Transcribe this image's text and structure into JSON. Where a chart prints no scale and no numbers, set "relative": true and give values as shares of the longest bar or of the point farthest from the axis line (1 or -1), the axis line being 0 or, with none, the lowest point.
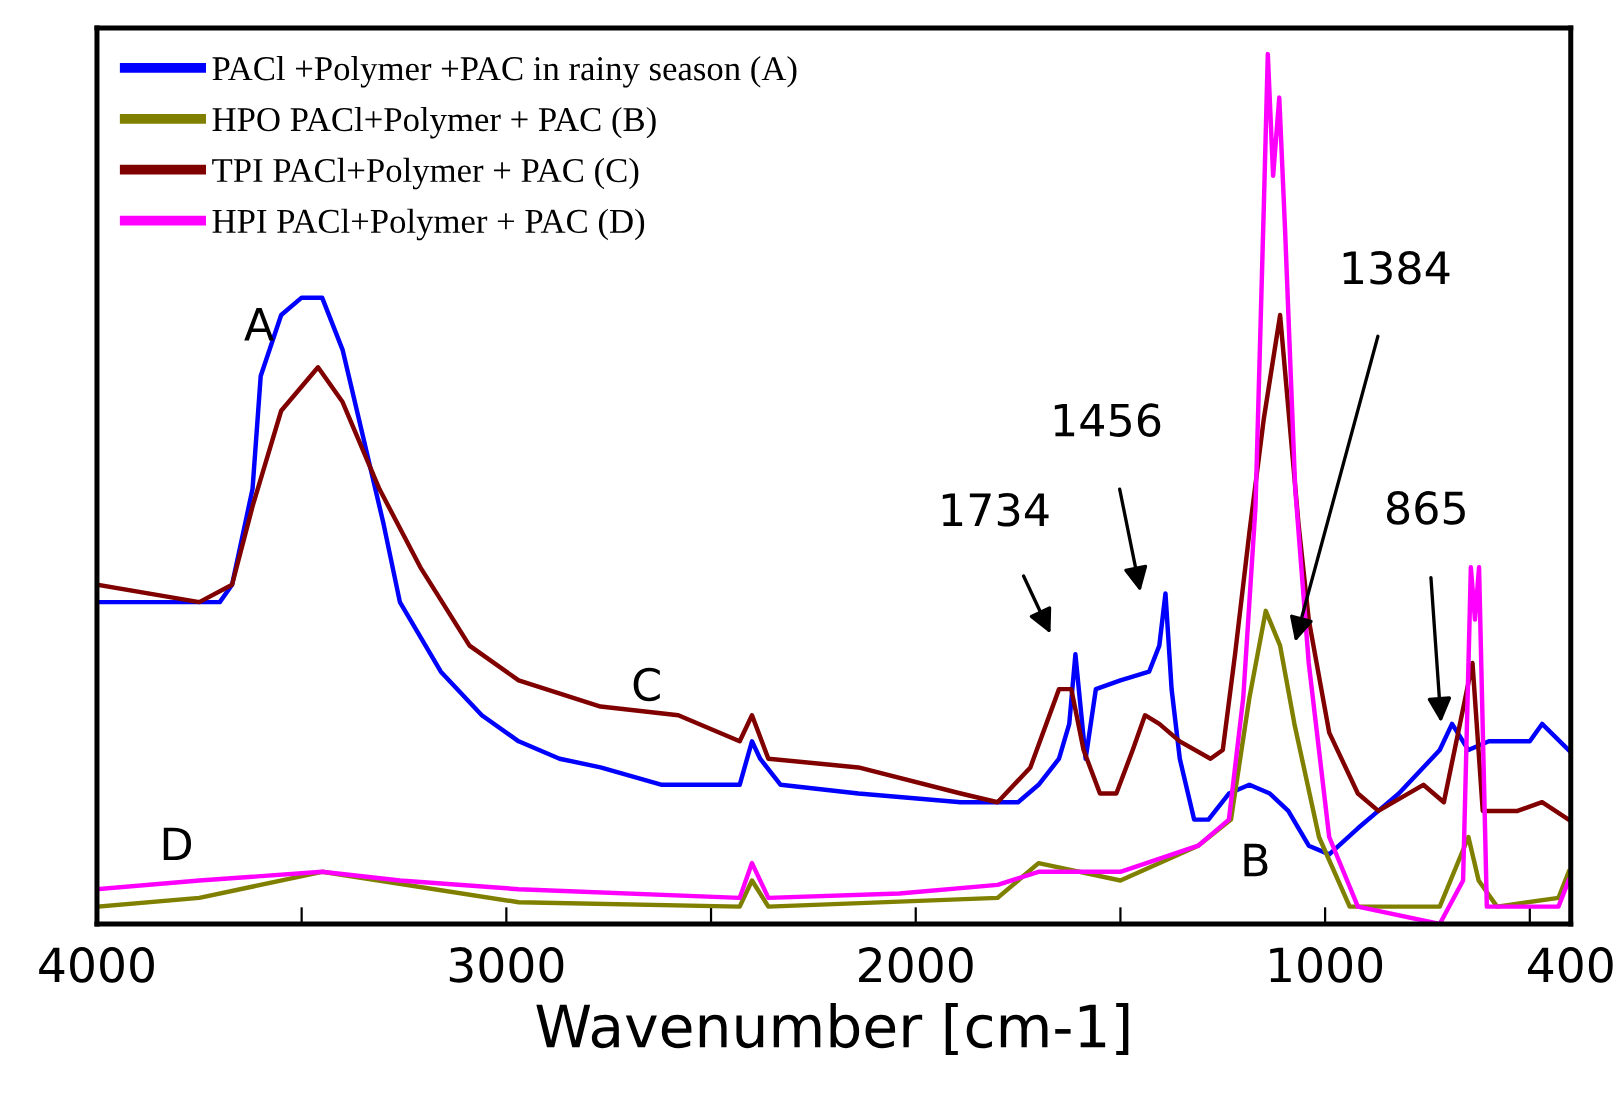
{
  "chart_data": {
    "type": "line",
    "relative": true,
    "xlabel": "Wavenumber [cm-1]",
    "xlim": [
      4000,
      400
    ],
    "xticks": [
      4000,
      {
        "value": 3500,
        "label": null
      },
      3000,
      {
        "value": 2500,
        "label": null
      },
      2000,
      {
        "value": 1500,
        "label": null
      },
      1000,
      {
        "value": 500,
        "label": null
      },
      400
    ],
    "tick_labels": "x",
    "legend": "top left",
    "grid": false,
    "series": [
      {
        "name": "PACl +Polymer +PAC in rainy season (A)",
        "color": "#0000ff",
        "x": [
          4000,
          3800,
          3700,
          3670,
          3620,
          3600,
          3550,
          3500,
          3450,
          3400,
          3350,
          3300,
          3260,
          3160,
          3060,
          2970,
          2870,
          2770,
          2620,
          2430,
          2400,
          2380,
          2330,
          2140,
          1890,
          1750,
          1700,
          1650,
          1625,
          1610,
          1585,
          1560,
          1500,
          1430,
          1405,
          1390,
          1375,
          1355,
          1320,
          1285,
          1235,
          1185,
          1135,
          1090,
          1040,
          990,
          920,
          870,
          820,
          720,
          690,
          650,
          600,
          500,
          470,
          405
        ],
        "values": [
          0.37,
          0.37,
          0.37,
          0.39,
          0.5,
          0.63,
          0.7,
          0.72,
          0.72,
          0.66,
          0.56,
          0.46,
          0.37,
          0.29,
          0.24,
          0.21,
          0.19,
          0.18,
          0.16,
          0.16,
          0.21,
          0.19,
          0.16,
          0.15,
          0.14,
          0.14,
          0.16,
          0.19,
          0.23,
          0.31,
          0.19,
          0.27,
          0.28,
          0.29,
          0.32,
          0.38,
          0.27,
          0.19,
          0.12,
          0.12,
          0.15,
          0.16,
          0.15,
          0.13,
          0.09,
          0.08,
          0.11,
          0.13,
          0.15,
          0.2,
          0.23,
          0.2,
          0.21,
          0.21,
          0.23,
          0.2
        ]
      },
      {
        "name": "HPO PACl+Polymer + PAC (B)",
        "color": "#808000",
        "x": [
          4000,
          3750,
          3450,
          2970,
          2430,
          2400,
          2360,
          1800,
          1700,
          1500,
          1310,
          1230,
          1185,
          1145,
          1110,
          1075,
          1015,
          940,
          720,
          650,
          625,
          580,
          430,
          405
        ],
        "values": [
          0.02,
          0.03,
          0.06,
          0.025,
          0.02,
          0.05,
          0.02,
          0.03,
          0.07,
          0.05,
          0.09,
          0.12,
          0.26,
          0.36,
          0.32,
          0.23,
          0.1,
          0.02,
          0.02,
          0.1,
          0.05,
          0.02,
          0.03,
          0.06
        ]
      },
      {
        "name": "TPI PACl+Polymer + PAC (C)",
        "color": "#800000",
        "x": [
          4000,
          3750,
          3670,
          3620,
          3550,
          3460,
          3400,
          3310,
          3210,
          3090,
          2970,
          2770,
          2580,
          2430,
          2400,
          2360,
          2140,
          1890,
          1800,
          1720,
          1650,
          1620,
          1590,
          1550,
          1510,
          1470,
          1440,
          1405,
          1355,
          1280,
          1250,
          1220,
          1185,
          1150,
          1110,
          1065,
          1040,
          990,
          920,
          870,
          760,
          710,
          640,
          615,
          530,
          470,
          405
        ],
        "values": [
          0.39,
          0.37,
          0.39,
          0.48,
          0.59,
          0.64,
          0.6,
          0.5,
          0.41,
          0.32,
          0.28,
          0.25,
          0.24,
          0.21,
          0.24,
          0.19,
          0.18,
          0.15,
          0.14,
          0.18,
          0.27,
          0.27,
          0.2,
          0.15,
          0.15,
          0.2,
          0.24,
          0.23,
          0.21,
          0.19,
          0.2,
          0.31,
          0.45,
          0.58,
          0.7,
          0.46,
          0.35,
          0.22,
          0.15,
          0.13,
          0.16,
          0.14,
          0.3,
          0.13,
          0.13,
          0.14,
          0.12
        ]
      },
      {
        "name": "HPI PACl+Polymer + PAC (D)",
        "color": "#ff00ff",
        "x": [
          4000,
          3750,
          3450,
          3260,
          2970,
          2430,
          2400,
          2360,
          2040,
          1800,
          1700,
          1500,
          1310,
          1235,
          1200,
          1170,
          1150,
          1140,
          1127,
          1112,
          1098,
          1073,
          1040,
          990,
          920,
          720,
          663,
          644,
          634,
          624,
          605,
          566,
          430,
          405
        ],
        "values": [
          0.04,
          0.05,
          0.06,
          0.05,
          0.04,
          0.03,
          0.07,
          0.03,
          0.035,
          0.045,
          0.06,
          0.06,
          0.09,
          0.12,
          0.26,
          0.48,
          0.82,
          1.0,
          0.86,
          0.95,
          0.8,
          0.5,
          0.3,
          0.1,
          0.02,
          0.0,
          0.05,
          0.41,
          0.35,
          0.41,
          0.02,
          0.02,
          0.02,
          0.05
        ]
      }
    ],
    "annotations": [
      "A",
      "B",
      "C",
      "D",
      "1734",
      "1456",
      "1384",
      "865"
    ]
  }
}
